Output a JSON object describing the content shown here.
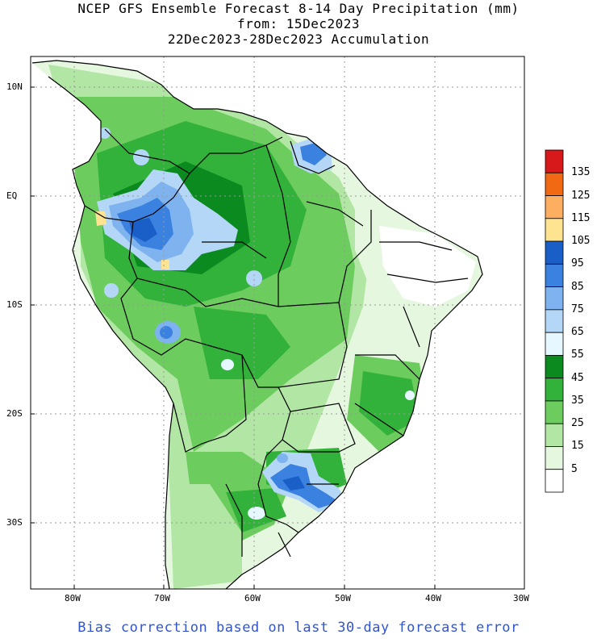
{
  "title": {
    "line1": "NCEP GFS Ensemble Forecast 8-14 Day Precipitation (mm)",
    "line2": "from: 15Dec2023",
    "line3": "22Dec2023-28Dec2023 Accumulation"
  },
  "lat_labels": [
    "10N",
    "EQ",
    "10S",
    "20S",
    "30S"
  ],
  "lon_labels": [
    "80W",
    "70W",
    "60W",
    "50W",
    "40W",
    "30W"
  ],
  "colorbar": {
    "labels": [
      "135",
      "125",
      "115",
      "105",
      "95",
      "85",
      "75",
      "65",
      "55",
      "45",
      "35",
      "25",
      "15",
      "5"
    ],
    "colors": [
      "#d7191c",
      "#f16913",
      "#fdae61",
      "#fee391",
      "#1a5fc7",
      "#3b82e0",
      "#7fb3f0",
      "#b5d7f7",
      "#e6f7ff",
      "#0a8a1f",
      "#33b23b",
      "#6ccc5e",
      "#b2e6a4",
      "#e6f7e0",
      "#ffffff"
    ]
  },
  "footer": "Bias correction based on last 30-day forecast error"
}
